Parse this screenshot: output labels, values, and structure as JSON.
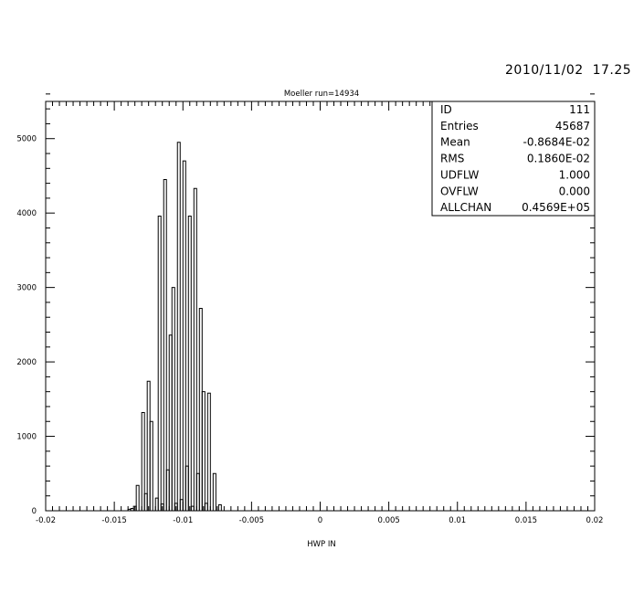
{
  "timestamp": "2010/11/02  17.25",
  "chart_data": {
    "type": "bar",
    "title": "Moeller run=14934",
    "xlabel": "HWP IN",
    "ylabel": "",
    "xlim": [
      -0.02,
      0.02
    ],
    "ylim": [
      0,
      5500
    ],
    "x_ticks": [
      -0.02,
      -0.015,
      -0.01,
      -0.005,
      0,
      0.005,
      0.01,
      0.015,
      0.02
    ],
    "x_tick_labels": [
      "-0.02",
      "-0.015",
      "-0.01",
      "-0.005",
      "0",
      "0.005",
      "0.01",
      "0.015",
      "0.02"
    ],
    "y_ticks": [
      0,
      1000,
      2000,
      3000,
      4000,
      5000
    ],
    "y_tick_labels": [
      "0",
      "1000",
      "2000",
      "3000",
      "4000",
      "5000"
    ],
    "bin_width": 0.0002,
    "bin_edges_start": -0.014,
    "values": [
      20,
      30,
      60,
      340,
      0,
      1320,
      230,
      1740,
      1200,
      0,
      170,
      3960,
      90,
      4450,
      550,
      2360,
      3000,
      100,
      4950,
      150,
      4700,
      600,
      3960,
      60,
      4330,
      500,
      2720,
      1600,
      100,
      1580,
      0,
      500,
      0,
      80
    ],
    "stats_box": [
      {
        "label": "ID",
        "value": "111"
      },
      {
        "label": "Entries",
        "value": "45687"
      },
      {
        "label": "Mean",
        "value": "-0.8684E-02"
      },
      {
        "label": "RMS",
        "value": "0.1860E-02"
      },
      {
        "label": "UDFLW",
        "value": "1.000"
      },
      {
        "label": "OVFLW",
        "value": "0.000"
      },
      {
        "label": "ALLCHAN",
        "value": "0.4569E+05"
      }
    ]
  }
}
